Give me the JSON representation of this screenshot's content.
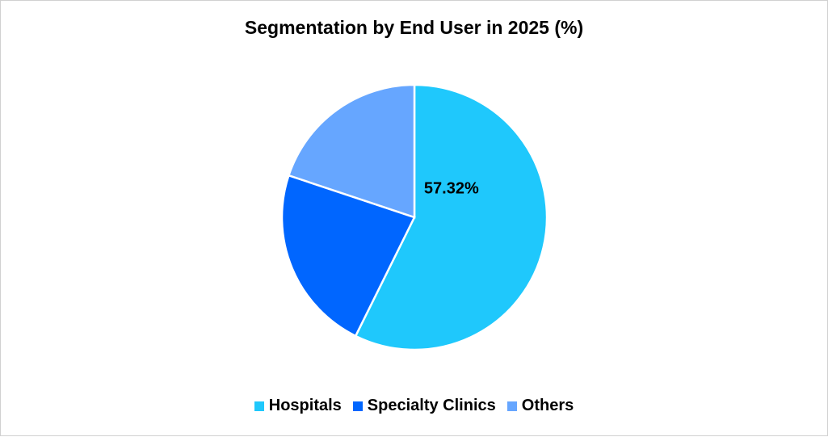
{
  "chart_data": {
    "type": "pie",
    "title": "Segmentation by End User in 2025 (%)",
    "categories": [
      "Hospitals",
      "Specialty Clinics",
      "Others"
    ],
    "values": [
      57.32,
      22.8,
      19.88
    ],
    "colors": [
      "#1FC8FC",
      "#0066FF",
      "#66A6FF"
    ],
    "data_labels": [
      "57.32%",
      "",
      ""
    ],
    "legend_position": "bottom"
  }
}
